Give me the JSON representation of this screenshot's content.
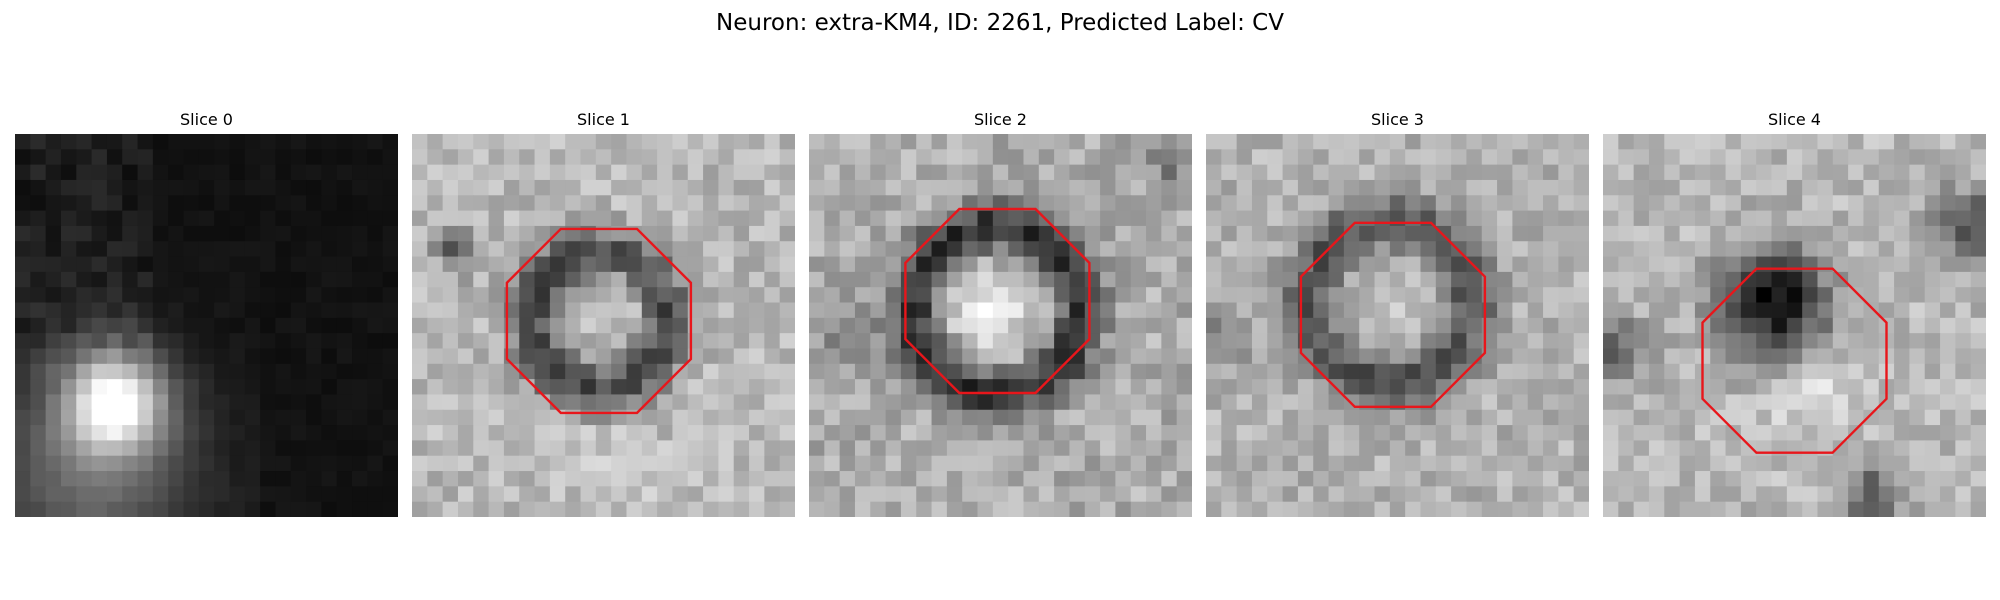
{
  "figure": {
    "title": "Neuron: extra-KM4, ID: 2261, Predicted Label: CV",
    "outline_color": "#e8161b",
    "colormap": "gray",
    "panels": [
      {
        "label": "Slice 0",
        "roi_outline": false
      },
      {
        "label": "Slice 1",
        "roi_outline": true
      },
      {
        "label": "Slice 2",
        "roi_outline": true
      },
      {
        "label": "Slice 3",
        "roi_outline": true
      },
      {
        "label": "Slice 4",
        "roi_outline": true
      }
    ]
  }
}
